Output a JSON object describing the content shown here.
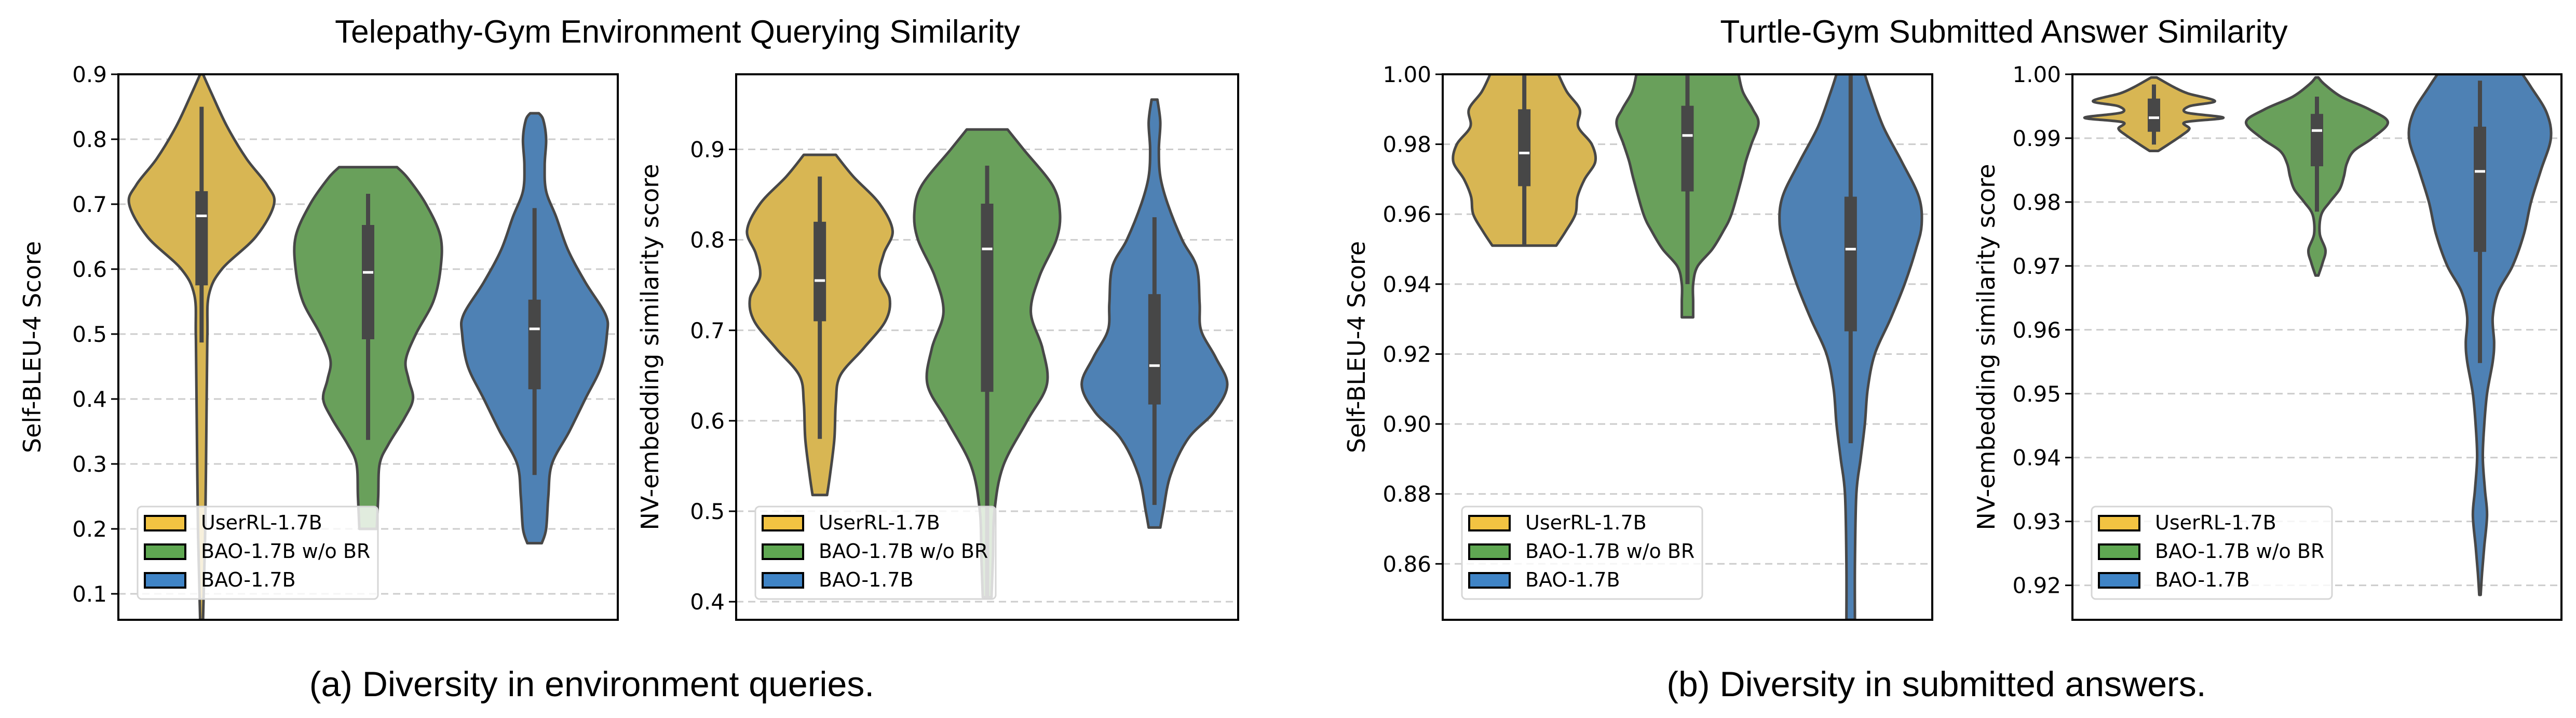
{
  "figure": {
    "captions": [
      "(a) Diversity in environment queries.",
      "(b) Diversity in submitted answers."
    ],
    "group_titles": [
      "Telepathy-Gym Environment Querying Similarity",
      "Turtle-Gym Submitted Answer Similarity"
    ]
  },
  "chart_data": [
    {
      "type": "violin",
      "group_title": "Telepathy-Gym Environment Querying Similarity",
      "ylabel": "Self-BLEU-4 Score",
      "xlabel": "",
      "ylim": [
        0.06,
        0.9
      ],
      "yticks": [
        0.1,
        0.2,
        0.3,
        0.4,
        0.5,
        0.6,
        0.7,
        0.8,
        0.9
      ],
      "ytick_labels": [
        "0.1",
        "0.2",
        "0.3",
        "0.4",
        "0.5",
        "0.6",
        "0.7",
        "0.8",
        "0.9"
      ],
      "grid": "y-dashed",
      "legend": {
        "placement": "lower-left",
        "entries": [
          "UserRL-1.7B",
          "BAO-1.7B w/o BR",
          "BAO-1.7B"
        ]
      },
      "series": [
        {
          "name": "UserRL-1.7B",
          "color": "#D8B653",
          "legend_color": "#F2C342",
          "min": 0.06,
          "max": 0.9,
          "q1": 0.575,
          "median": 0.682,
          "q3": 0.72,
          "whisker_low": 0.487,
          "whisker_high": 0.85,
          "density": [
            [
              0.06,
              0.02
            ],
            [
              0.2,
              0.05
            ],
            [
              0.4,
              0.07
            ],
            [
              0.5,
              0.08
            ],
            [
              0.56,
              0.1
            ],
            [
              0.6,
              0.28
            ],
            [
              0.65,
              0.75
            ],
            [
              0.7,
              1.0
            ],
            [
              0.73,
              0.9
            ],
            [
              0.77,
              0.62
            ],
            [
              0.82,
              0.35
            ],
            [
              0.87,
              0.14
            ],
            [
              0.9,
              0.02
            ]
          ]
        },
        {
          "name": "BAO-1.7B w/o BR",
          "color": "#69A05B",
          "legend_color": "#5FA852",
          "min": 0.2,
          "max": 0.757,
          "q1": 0.492,
          "median": 0.595,
          "q3": 0.668,
          "whisker_low": 0.337,
          "whisker_high": 0.716,
          "density": [
            [
              0.2,
              0.12
            ],
            [
              0.25,
              0.14
            ],
            [
              0.3,
              0.16
            ],
            [
              0.33,
              0.28
            ],
            [
              0.37,
              0.5
            ],
            [
              0.4,
              0.62
            ],
            [
              0.43,
              0.56
            ],
            [
              0.46,
              0.52
            ],
            [
              0.5,
              0.66
            ],
            [
              0.55,
              0.9
            ],
            [
              0.6,
              1.0
            ],
            [
              0.65,
              1.0
            ],
            [
              0.7,
              0.8
            ],
            [
              0.74,
              0.55
            ],
            [
              0.757,
              0.4
            ]
          ]
        },
        {
          "name": "BAO-1.7B",
          "color": "#4E81B4",
          "legend_color": "#3F84C6",
          "min": 0.178,
          "max": 0.84,
          "q1": 0.415,
          "median": 0.508,
          "q3": 0.553,
          "whisker_low": 0.283,
          "whisker_high": 0.694,
          "density": [
            [
              0.178,
              0.1
            ],
            [
              0.2,
              0.16
            ],
            [
              0.25,
              0.19
            ],
            [
              0.3,
              0.24
            ],
            [
              0.35,
              0.48
            ],
            [
              0.4,
              0.7
            ],
            [
              0.45,
              0.92
            ],
            [
              0.5,
              1.0
            ],
            [
              0.53,
              0.98
            ],
            [
              0.58,
              0.7
            ],
            [
              0.63,
              0.46
            ],
            [
              0.68,
              0.3
            ],
            [
              0.72,
              0.16
            ],
            [
              0.76,
              0.14
            ],
            [
              0.8,
              0.16
            ],
            [
              0.83,
              0.12
            ],
            [
              0.84,
              0.06
            ]
          ]
        }
      ]
    },
    {
      "type": "violin",
      "group_title": "Telepathy-Gym Environment Querying Similarity",
      "ylabel": "NV-embedding similarity score",
      "xlabel": "",
      "ylim": [
        0.38,
        0.983
      ],
      "yticks": [
        0.4,
        0.5,
        0.6,
        0.7,
        0.8,
        0.9
      ],
      "ytick_labels": [
        "0.4",
        "0.5",
        "0.6",
        "0.7",
        "0.8",
        "0.9"
      ],
      "grid": "y-dashed",
      "legend": {
        "placement": "lower-left",
        "entries": [
          "UserRL-1.7B",
          "BAO-1.7B w/o BR",
          "BAO-1.7B"
        ]
      },
      "series": [
        {
          "name": "UserRL-1.7B",
          "color": "#D8B653",
          "legend_color": "#F2C342",
          "min": 0.518,
          "max": 0.894,
          "q1": 0.71,
          "median": 0.755,
          "q3": 0.82,
          "whisker_low": 0.58,
          "whisker_high": 0.87,
          "density": [
            [
              0.518,
              0.1
            ],
            [
              0.54,
              0.14
            ],
            [
              0.58,
              0.2
            ],
            [
              0.62,
              0.22
            ],
            [
              0.65,
              0.28
            ],
            [
              0.68,
              0.6
            ],
            [
              0.71,
              0.9
            ],
            [
              0.735,
              0.96
            ],
            [
              0.76,
              0.82
            ],
            [
              0.785,
              0.88
            ],
            [
              0.81,
              1.0
            ],
            [
              0.84,
              0.82
            ],
            [
              0.87,
              0.46
            ],
            [
              0.894,
              0.22
            ]
          ]
        },
        {
          "name": "BAO-1.7B w/o BR",
          "color": "#69A05B",
          "legend_color": "#5FA852",
          "min": 0.405,
          "max": 0.922,
          "q1": 0.632,
          "median": 0.79,
          "q3": 0.84,
          "whisker_low": 0.405,
          "whisker_high": 0.882,
          "density": [
            [
              0.405,
              0.06
            ],
            [
              0.45,
              0.08
            ],
            [
              0.5,
              0.1
            ],
            [
              0.55,
              0.22
            ],
            [
              0.6,
              0.55
            ],
            [
              0.64,
              0.82
            ],
            [
              0.68,
              0.76
            ],
            [
              0.72,
              0.6
            ],
            [
              0.76,
              0.72
            ],
            [
              0.8,
              0.95
            ],
            [
              0.83,
              1.0
            ],
            [
              0.86,
              0.9
            ],
            [
              0.9,
              0.5
            ],
            [
              0.922,
              0.28
            ]
          ]
        },
        {
          "name": "BAO-1.7B",
          "color": "#4E81B4",
          "legend_color": "#3F84C6",
          "min": 0.482,
          "max": 0.955,
          "q1": 0.618,
          "median": 0.661,
          "q3": 0.74,
          "whisker_low": 0.507,
          "whisker_high": 0.825,
          "density": [
            [
              0.482,
              0.08
            ],
            [
              0.5,
              0.12
            ],
            [
              0.54,
              0.22
            ],
            [
              0.58,
              0.46
            ],
            [
              0.61,
              0.82
            ],
            [
              0.64,
              1.0
            ],
            [
              0.67,
              0.84
            ],
            [
              0.7,
              0.64
            ],
            [
              0.73,
              0.62
            ],
            [
              0.77,
              0.58
            ],
            [
              0.8,
              0.38
            ],
            [
              0.84,
              0.18
            ],
            [
              0.87,
              0.08
            ],
            [
              0.9,
              0.06
            ],
            [
              0.93,
              0.08
            ],
            [
              0.955,
              0.04
            ]
          ]
        }
      ]
    },
    {
      "type": "violin",
      "group_title": "Turtle-Gym Submitted Answer Similarity",
      "ylabel": "Self-BLEU-4 Score",
      "xlabel": "",
      "ylim": [
        0.844,
        1.0
      ],
      "yticks": [
        0.86,
        0.88,
        0.9,
        0.92,
        0.94,
        0.96,
        0.98,
        1.0
      ],
      "ytick_labels": [
        "0.86",
        "0.88",
        "0.90",
        "0.92",
        "0.94",
        "0.96",
        "0.98",
        "1.00"
      ],
      "grid": "y-dashed",
      "legend": {
        "placement": "lower-left",
        "entries": [
          "UserRL-1.7B",
          "BAO-1.7B w/o BR",
          "BAO-1.7B"
        ]
      },
      "series": [
        {
          "name": "UserRL-1.7B",
          "color": "#D8B653",
          "legend_color": "#F2C342",
          "min": 0.951,
          "max": 1.0,
          "q1": 0.968,
          "median": 0.9775,
          "q3": 0.99,
          "whisker_low": 0.951,
          "whisker_high": 1.0,
          "density": [
            [
              0.951,
              0.45
            ],
            [
              0.955,
              0.58
            ],
            [
              0.96,
              0.72
            ],
            [
              0.965,
              0.75
            ],
            [
              0.97,
              0.85
            ],
            [
              0.975,
              1.0
            ],
            [
              0.98,
              0.95
            ],
            [
              0.985,
              0.76
            ],
            [
              0.99,
              0.78
            ],
            [
              0.995,
              0.6
            ],
            [
              1.0,
              0.48
            ]
          ]
        },
        {
          "name": "BAO-1.7B w/o BR",
          "color": "#69A05B",
          "legend_color": "#5FA852",
          "min": 0.9305,
          "max": 1.0,
          "q1": 0.9665,
          "median": 0.9825,
          "q3": 0.991,
          "whisker_low": 0.94,
          "whisker_high": 1.0,
          "density": [
            [
              0.9305,
              0.08
            ],
            [
              0.935,
              0.08
            ],
            [
              0.94,
              0.08
            ],
            [
              0.945,
              0.14
            ],
            [
              0.95,
              0.35
            ],
            [
              0.955,
              0.5
            ],
            [
              0.96,
              0.62
            ],
            [
              0.97,
              0.76
            ],
            [
              0.975,
              0.82
            ],
            [
              0.98,
              0.9
            ],
            [
              0.986,
              1.0
            ],
            [
              0.99,
              0.92
            ],
            [
              0.995,
              0.78
            ],
            [
              1.0,
              0.72
            ]
          ]
        },
        {
          "name": "BAO-1.7B",
          "color": "#4E81B4",
          "legend_color": "#3F84C6",
          "min": 0.844,
          "max": 1.0,
          "q1": 0.9265,
          "median": 0.95,
          "q3": 0.965,
          "whisker_low": 0.8945,
          "whisker_high": 1.0,
          "density": [
            [
              0.844,
              0.06
            ],
            [
              0.86,
              0.06
            ],
            [
              0.88,
              0.08
            ],
            [
              0.89,
              0.14
            ],
            [
              0.9,
              0.2
            ],
            [
              0.91,
              0.24
            ],
            [
              0.92,
              0.34
            ],
            [
              0.93,
              0.56
            ],
            [
              0.94,
              0.76
            ],
            [
              0.95,
              0.92
            ],
            [
              0.957,
              1.0
            ],
            [
              0.965,
              0.96
            ],
            [
              0.975,
              0.72
            ],
            [
              0.985,
              0.46
            ],
            [
              0.995,
              0.28
            ],
            [
              1.0,
              0.2
            ]
          ]
        }
      ]
    },
    {
      "type": "violin",
      "group_title": "Turtle-Gym Submitted Answer Similarity",
      "ylabel": "NV-embedding similarity score",
      "xlabel": "",
      "ylim": [
        0.9146,
        1.0
      ],
      "yticks": [
        0.92,
        0.93,
        0.94,
        0.95,
        0.96,
        0.97,
        0.98,
        0.99,
        1.0
      ],
      "ytick_labels": [
        "0.92",
        "0.93",
        "0.94",
        "0.95",
        "0.96",
        "0.97",
        "0.98",
        "0.99",
        "1.00"
      ],
      "grid": "y-dashed",
      "legend": {
        "placement": "lower-left",
        "entries": [
          "UserRL-1.7B",
          "BAO-1.7B w/o BR",
          "BAO-1.7B"
        ]
      },
      "series": [
        {
          "name": "UserRL-1.7B",
          "color": "#D8B653",
          "legend_color": "#F2C342",
          "min": 0.988,
          "max": 0.9995,
          "q1": 0.991,
          "median": 0.9932,
          "q3": 0.9962,
          "whisker_low": 0.989,
          "whisker_high": 0.9984,
          "density": [
            [
              0.988,
              0.06
            ],
            [
              0.989,
              0.2
            ],
            [
              0.9905,
              0.4
            ],
            [
              0.9915,
              0.5
            ],
            [
              0.9925,
              0.44
            ],
            [
              0.9932,
              0.98
            ],
            [
              0.994,
              0.46
            ],
            [
              0.995,
              0.5
            ],
            [
              0.9958,
              0.86
            ],
            [
              0.997,
              0.48
            ],
            [
              0.998,
              0.28
            ],
            [
              0.9995,
              0.04
            ]
          ]
        },
        {
          "name": "BAO-1.7B w/o BR",
          "color": "#69A05B",
          "legend_color": "#5FA852",
          "min": 0.9685,
          "max": 0.9995,
          "q1": 0.9856,
          "median": 0.9912,
          "q3": 0.9938,
          "whisker_low": 0.9785,
          "whisker_high": 0.9965,
          "density": [
            [
              0.9685,
              0.02
            ],
            [
              0.9705,
              0.08
            ],
            [
              0.9725,
              0.12
            ],
            [
              0.975,
              0.04
            ],
            [
              0.978,
              0.06
            ],
            [
              0.98,
              0.18
            ],
            [
              0.982,
              0.32
            ],
            [
              0.984,
              0.38
            ],
            [
              0.986,
              0.42
            ],
            [
              0.988,
              0.52
            ],
            [
              0.99,
              0.78
            ],
            [
              0.9925,
              1.0
            ],
            [
              0.9945,
              0.74
            ],
            [
              0.9965,
              0.34
            ],
            [
              0.9985,
              0.1
            ],
            [
              0.9995,
              0.02
            ]
          ]
        },
        {
          "name": "BAO-1.7B",
          "color": "#4E81B4",
          "legend_color": "#3F84C6",
          "min": 0.9185,
          "max": 1.0,
          "q1": 0.9722,
          "median": 0.9848,
          "q3": 0.9918,
          "whisker_low": 0.9548,
          "whisker_high": 0.999,
          "density": [
            [
              0.9185,
              0.01
            ],
            [
              0.922,
              0.03
            ],
            [
              0.926,
              0.06
            ],
            [
              0.931,
              0.1
            ],
            [
              0.935,
              0.07
            ],
            [
              0.94,
              0.04
            ],
            [
              0.945,
              0.06
            ],
            [
              0.95,
              0.1
            ],
            [
              0.955,
              0.18
            ],
            [
              0.958,
              0.2
            ],
            [
              0.962,
              0.18
            ],
            [
              0.966,
              0.26
            ],
            [
              0.97,
              0.46
            ],
            [
              0.975,
              0.62
            ],
            [
              0.98,
              0.72
            ],
            [
              0.985,
              0.86
            ],
            [
              0.99,
              1.0
            ],
            [
              0.994,
              0.94
            ],
            [
              0.998,
              0.72
            ],
            [
              1.0,
              0.6
            ]
          ]
        }
      ]
    }
  ]
}
